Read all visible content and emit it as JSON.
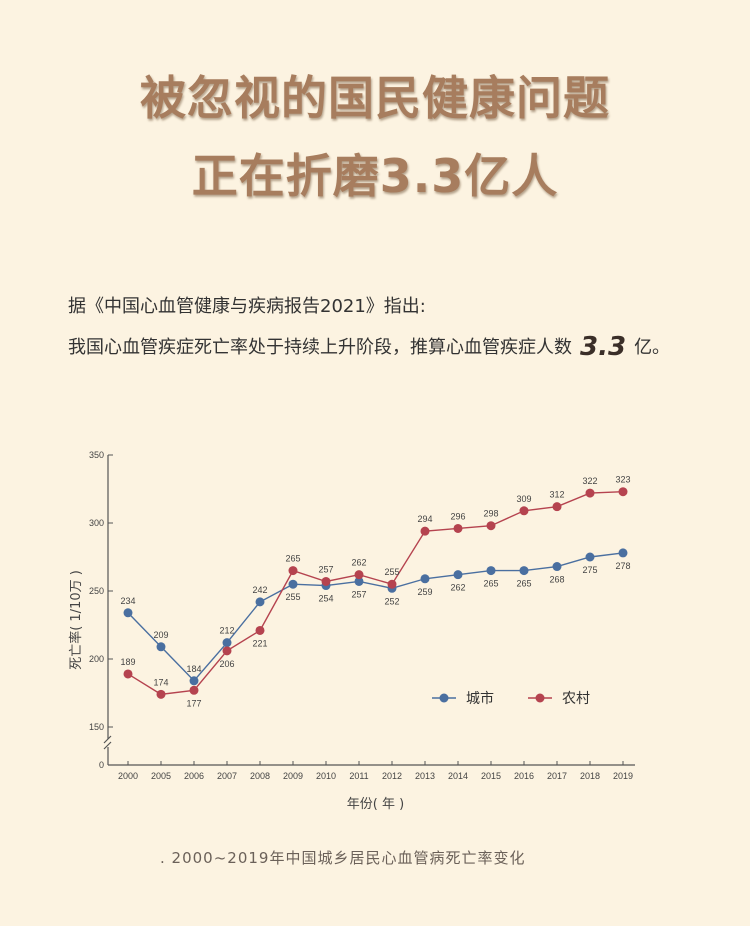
{
  "title_line1": "被忽视的国民健康问题",
  "title_line2": "正在折磨3.3亿人",
  "paragraph1": "据《中国心血管健康与疾病报告2021》指出:",
  "paragraph2_pre": "我国心血管疾症死亡率处于持续上升阶段，推算心血管疾症人数",
  "paragraph2_num": "3.3",
  "paragraph2_post": "亿。",
  "caption": ". 2000~2019年中国城乡居民心血管病死亡率变化",
  "colors": {
    "urban": "#4a6fa0",
    "rural": "#b5434f"
  },
  "chart_data": {
    "type": "line",
    "categories": [
      "2000",
      "2005",
      "2006",
      "2007",
      "2008",
      "2009",
      "2010",
      "2011",
      "2012",
      "2013",
      "2014",
      "2015",
      "2016",
      "2017",
      "2018",
      "2019"
    ],
    "series": [
      {
        "name": "城市",
        "values": [
          234,
          209,
          184,
          212,
          242,
          255,
          254,
          257,
          252,
          259,
          262,
          265,
          265,
          268,
          275,
          278
        ]
      },
      {
        "name": "农村",
        "values": [
          189,
          174,
          177,
          206,
          221,
          265,
          257,
          262,
          255,
          294,
          296,
          298,
          309,
          312,
          322,
          323
        ]
      }
    ],
    "xlabel": "年份( 年 )",
    "ylabel": "死亡率( 1/10万 )",
    "yticks": [
      0,
      150,
      200,
      250,
      300,
      350
    ],
    "ylim": [
      150,
      350
    ],
    "axis_break": true,
    "legend": "inside-bottom-right",
    "grid": false
  }
}
